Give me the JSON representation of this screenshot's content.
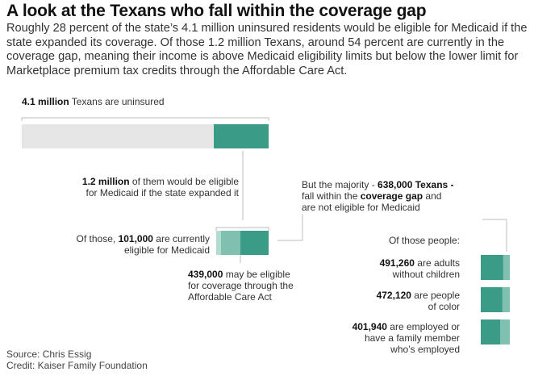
{
  "title": "A look at the Texans who fall within the coverage gap",
  "subtitle": "Roughly 28 percent of the state’s 4.1 million uninsured residents would be eligible for Medicaid if the state expanded its coverage. Of those 1.2 million Texans, around 54 percent are currently in the coverage gap, meaning their income is above Medicaid eligibility limits but below the lower limit for Marketplace premium tax credits through the Affordable Care Act.",
  "labels": {
    "uninsured": {
      "value": "4.1 million",
      "text": " Texans are uninsured"
    },
    "eligible": {
      "value": "1.2 million",
      "text1": " of them would be eligible",
      "text2": "for Medicaid if the state expanded it"
    },
    "currently": {
      "text1": "Of those, ",
      "value": "101,000",
      "text2": " are currently",
      "text3": "eligible for Medicaid"
    },
    "aca": {
      "value": "439,000",
      "text1": " may be eligible",
      "text2": "for coverage through the",
      "text3": "Affordable Care Act"
    },
    "gap": {
      "text1": "But the majority - ",
      "value": "638,000 Texans -",
      "text2": "fall within the ",
      "value2": "coverage gap",
      "text3": " and",
      "text4": "are not eligible for Medicaid"
    },
    "of_those_people": "Of those people:",
    "adults": {
      "value": "491,260",
      "text1": " are adults",
      "text2": "without children"
    },
    "color": {
      "value": "472,120",
      "text1": " are people",
      "text2": "of color"
    },
    "employed": {
      "value": "401,940",
      "text1": " are employed or",
      "text2": "have a family member",
      "text3": "who’s employed"
    }
  },
  "source": "Source: Chris Essig",
  "credit": "Credit: Kaiser Family Foundation",
  "colors": {
    "grey": "#e6e6e6",
    "teal": "#3a9c86",
    "light_teal": "#7fc0b1",
    "pale_teal": "#b3dbd1",
    "line": "#bdbdbd"
  },
  "chart_data": {
    "type": "bar",
    "uninsured_total": 4100000,
    "would_be_eligible": 1200000,
    "breakdown": [
      {
        "name": "currently eligible for Medicaid",
        "value": 101000
      },
      {
        "name": "may be eligible through the ACA",
        "value": 439000
      },
      {
        "name": "coverage gap",
        "value": 638000
      }
    ],
    "coverage_gap_groups": [
      {
        "name": "adults without children",
        "value": 491260
      },
      {
        "name": "people of color",
        "value": 472120
      },
      {
        "name": "employed or family member employed",
        "value": 401940
      }
    ]
  }
}
